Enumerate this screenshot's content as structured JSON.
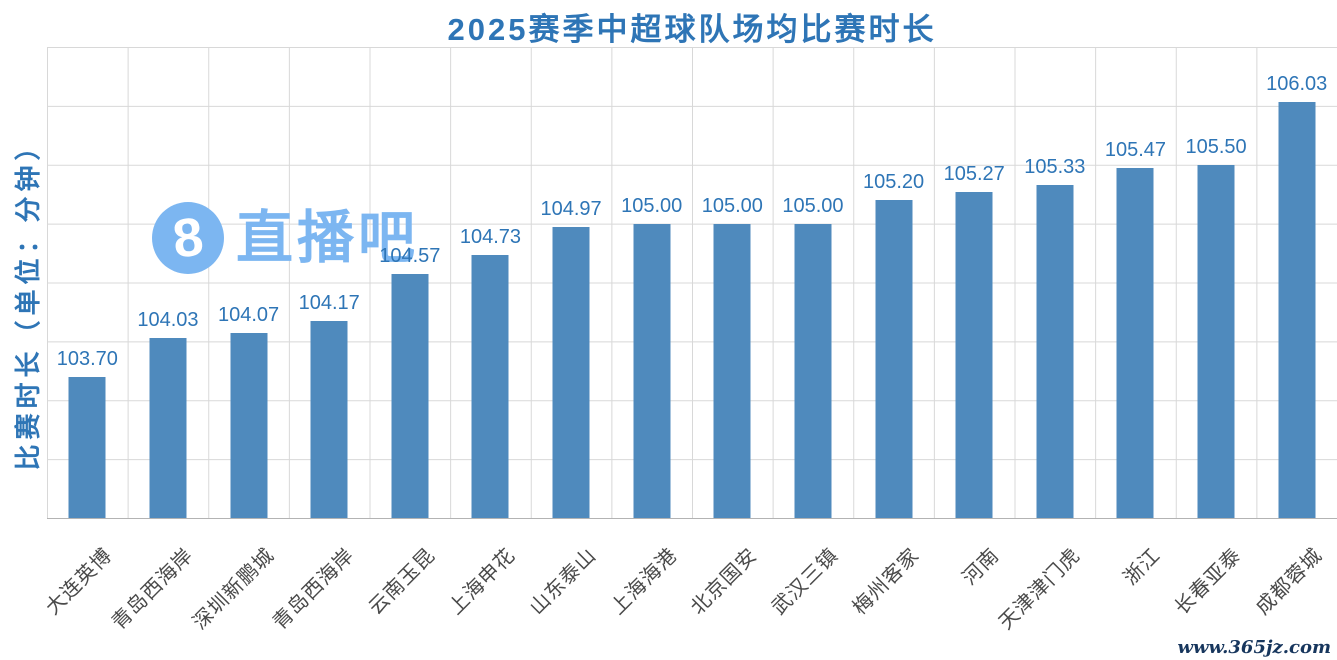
{
  "title": {
    "text": "2025赛季中超球队场均比赛时长",
    "color": "#2e75b6"
  },
  "chart_data": {
    "type": "bar",
    "title": "2025赛季中超球队场均比赛时长",
    "xlabel": "",
    "ylabel": "比赛时长（单位：分钟）",
    "categories": [
      "大连英博",
      "青岛西海岸",
      "深圳新鹏城",
      "青岛西海岸",
      "云南玉昆",
      "上海申花",
      "山东泰山",
      "上海海港",
      "北京国安",
      "武汉三镇",
      "梅州客家",
      "河南",
      "天津津门虎",
      "浙江",
      "长春亚泰",
      "成都蓉城"
    ],
    "values": [
      103.7,
      104.03,
      104.07,
      104.17,
      104.57,
      104.73,
      104.97,
      105.0,
      105.0,
      105.0,
      105.2,
      105.27,
      105.33,
      105.47,
      105.5,
      106.03
    ],
    "value_labels": [
      "103.70",
      "104.03",
      "104.07",
      "104.17",
      "104.57",
      "104.73",
      "104.97",
      "105.00",
      "105.00",
      "105.00",
      "105.20",
      "105.27",
      "105.33",
      "105.47",
      "105.50",
      "106.03"
    ],
    "ylim": [
      102.5,
      106.5
    ],
    "grid_step": 0.5,
    "grid": true,
    "legend_position": "none",
    "bar_color": "#4f8abd",
    "value_label_color": "#2e75b6",
    "tick_label_color": "#4a4a4a"
  },
  "watermark": {
    "badge": "8",
    "brand": "直播吧",
    "color": "#7cb6f1"
  },
  "footer": {
    "url": "www.365jz.com",
    "color": "#17365d"
  }
}
